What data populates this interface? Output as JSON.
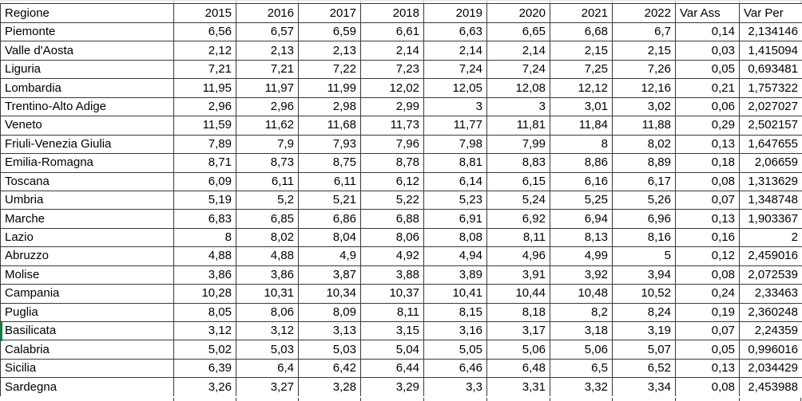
{
  "table": {
    "header": [
      "Regione",
      "2015",
      "2016",
      "2017",
      "2018",
      "2019",
      "2020",
      "2021",
      "2022",
      "Var Ass",
      "Var Per"
    ],
    "rows": [
      {
        "region": "Piemonte",
        "values": [
          "6,56",
          "6,57",
          "6,59",
          "6,61",
          "6,63",
          "6,65",
          "6,68",
          "6,7",
          "0,14",
          "2,134146"
        ]
      },
      {
        "region": "Valle d'Aosta",
        "values": [
          "2,12",
          "2,13",
          "2,13",
          "2,14",
          "2,14",
          "2,14",
          "2,15",
          "2,15",
          "0,03",
          "1,415094"
        ]
      },
      {
        "region": "Liguria",
        "values": [
          "7,21",
          "7,21",
          "7,22",
          "7,23",
          "7,24",
          "7,24",
          "7,25",
          "7,26",
          "0,05",
          "0,693481"
        ]
      },
      {
        "region": "Lombardia",
        "values": [
          "11,95",
          "11,97",
          "11,99",
          "12,02",
          "12,05",
          "12,08",
          "12,12",
          "12,16",
          "0,21",
          "1,757322"
        ]
      },
      {
        "region": "Trentino-Alto Adige",
        "values": [
          "2,96",
          "2,96",
          "2,98",
          "2,99",
          "3",
          "3",
          "3,01",
          "3,02",
          "0,06",
          "2,027027"
        ]
      },
      {
        "region": "Veneto",
        "values": [
          "11,59",
          "11,62",
          "11,68",
          "11,73",
          "11,77",
          "11,81",
          "11,84",
          "11,88",
          "0,29",
          "2,502157"
        ]
      },
      {
        "region": "Friuli-Venezia Giulia",
        "values": [
          "7,89",
          "7,9",
          "7,93",
          "7,96",
          "7,98",
          "7,99",
          "8",
          "8,02",
          "0,13",
          "1,647655"
        ]
      },
      {
        "region": "Emilia-Romagna",
        "values": [
          "8,71",
          "8,73",
          "8,75",
          "8,78",
          "8,81",
          "8,83",
          "8,86",
          "8,89",
          "0,18",
          "2,06659"
        ]
      },
      {
        "region": "Toscana",
        "values": [
          "6,09",
          "6,11",
          "6,11",
          "6,12",
          "6,14",
          "6,15",
          "6,16",
          "6,17",
          "0,08",
          "1,313629"
        ]
      },
      {
        "region": "Umbria",
        "values": [
          "5,19",
          "5,2",
          "5,21",
          "5,22",
          "5,23",
          "5,24",
          "5,25",
          "5,26",
          "0,07",
          "1,348748"
        ]
      },
      {
        "region": "Marche",
        "values": [
          "6,83",
          "6,85",
          "6,86",
          "6,88",
          "6,91",
          "6,92",
          "6,94",
          "6,96",
          "0,13",
          "1,903367"
        ]
      },
      {
        "region": "Lazio",
        "values": [
          "8",
          "8,02",
          "8,04",
          "8,06",
          "8,08",
          "8,11",
          "8,13",
          "8,16",
          "0,16",
          "2"
        ]
      },
      {
        "region": "Abruzzo",
        "values": [
          "4,88",
          "4,88",
          "4,9",
          "4,92",
          "4,94",
          "4,96",
          "4,99",
          "5",
          "0,12",
          "2,459016"
        ]
      },
      {
        "region": "Molise",
        "values": [
          "3,86",
          "3,86",
          "3,87",
          "3,88",
          "3,89",
          "3,91",
          "3,92",
          "3,94",
          "0,08",
          "2,072539"
        ]
      },
      {
        "region": "Campania",
        "values": [
          "10,28",
          "10,31",
          "10,34",
          "10,37",
          "10,41",
          "10,44",
          "10,48",
          "10,52",
          "0,24",
          "2,33463"
        ]
      },
      {
        "region": "Puglia",
        "values": [
          "8,05",
          "8,06",
          "8,09",
          "8,11",
          "8,15",
          "8,18",
          "8,2",
          "8,24",
          "0,19",
          "2,360248"
        ]
      },
      {
        "region": "Basilicata",
        "values": [
          "3,12",
          "3,12",
          "3,13",
          "3,15",
          "3,16",
          "3,17",
          "3,18",
          "3,19",
          "0,07",
          "2,24359"
        ]
      },
      {
        "region": "Calabria",
        "values": [
          "5,02",
          "5,03",
          "5,03",
          "5,04",
          "5,05",
          "5,06",
          "5,06",
          "5,07",
          "0,05",
          "0,996016"
        ]
      },
      {
        "region": "Sicilia",
        "values": [
          "6,39",
          "6,4",
          "6,42",
          "6,44",
          "6,46",
          "6,48",
          "6,5",
          "6,52",
          "0,13",
          "2,034429"
        ]
      },
      {
        "region": "Sardegna",
        "values": [
          "3,26",
          "3,27",
          "3,28",
          "3,29",
          "3,3",
          "3,31",
          "3,32",
          "3,34",
          "0,08",
          "2,453988"
        ]
      }
    ]
  },
  "selection": {
    "selected_row": "Basilicata"
  },
  "colors": {
    "border": "#3a3a3a",
    "gridline": "#b7b7b7",
    "selection_green": "#107C41",
    "text": "#000000",
    "background": "#ffffff"
  }
}
